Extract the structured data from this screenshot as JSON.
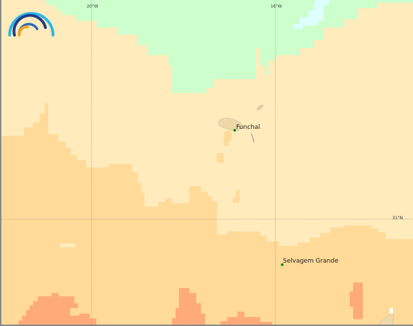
{
  "map": {
    "graticule": {
      "lon_labels": [
        "20°W",
        "16°W"
      ],
      "lat_labels": [
        "31°N"
      ]
    },
    "places": [
      {
        "name": "Funchal"
      },
      {
        "name": "Selvagem Grande"
      }
    ],
    "colors": {
      "zone_light": "#FFEBBB",
      "zone_mid": "#FFDA98",
      "zone_high": "#FFAA78",
      "zone_green": "#CCFFCC",
      "zone_cyan": "#DDFFFF",
      "land": "#EED8A8",
      "place_marker": "#1a8f1a"
    },
    "logo": {
      "icon": "rainbow-arcs-logo"
    }
  }
}
